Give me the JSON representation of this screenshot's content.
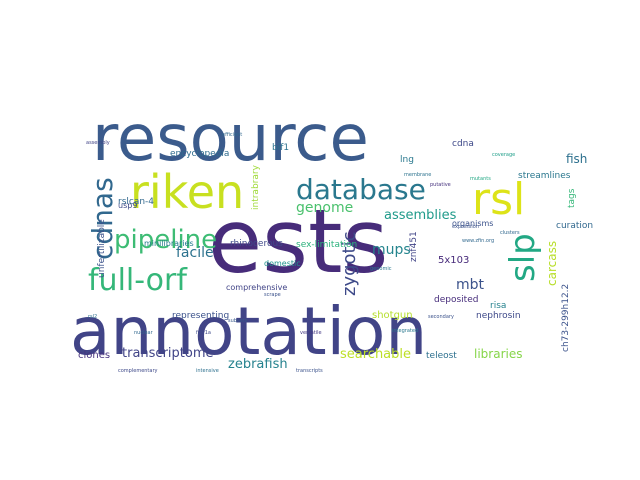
{
  "words": [
    {
      "text": "resource",
      "color": "#3b5b8c"
    },
    {
      "text": "ests",
      "color": "#472c7a"
    },
    {
      "text": "annotation",
      "color": "#414487"
    },
    {
      "text": "riken",
      "color": "#c8e020"
    },
    {
      "text": "database",
      "color": "#2a788e"
    },
    {
      "text": "rsl",
      "color": "#dde318"
    },
    {
      "text": "full-orf",
      "color": "#35b779"
    },
    {
      "text": "pipeline",
      "color": "#3dbc74"
    },
    {
      "text": "cdnas",
      "color": "#31688e"
    },
    {
      "text": "slp",
      "color": "#22a884"
    },
    {
      "text": "zebrafish",
      "color": "#26828e"
    },
    {
      "text": "transcriptome",
      "color": "#414487"
    },
    {
      "text": "searchable",
      "color": "#bddf26"
    },
    {
      "text": "libraries",
      "color": "#86d549"
    },
    {
      "text": "genome",
      "color": "#4ac16d"
    },
    {
      "text": "assemblies",
      "color": "#1f9a8a"
    },
    {
      "text": "facile",
      "color": "#2c728e"
    },
    {
      "text": "zygotic",
      "color": "#3e4a89"
    },
    {
      "text": "mups",
      "color": "#25858e"
    },
    {
      "text": "carcass",
      "color": "#b8de29"
    },
    {
      "text": "fish",
      "color": "#2d708e"
    },
    {
      "text": "mbt",
      "color": "#3b528b"
    },
    {
      "text": "encyclopedia",
      "color": "#2f6c8e"
    },
    {
      "text": "minilibraries",
      "color": "#287c8e"
    },
    {
      "text": "rhinocerous",
      "color": "#3f4889"
    },
    {
      "text": "sex-limitation",
      "color": "#2db27d"
    },
    {
      "text": "domestic",
      "color": "#20928c"
    },
    {
      "text": "comprehensive",
      "color": "#414487"
    },
    {
      "text": "representing",
      "color": "#3b528b"
    },
    {
      "text": "deposited",
      "color": "#472d7b"
    },
    {
      "text": "nephrosin",
      "color": "#3e4989"
    },
    {
      "text": "streamlines",
      "color": "#2a778e"
    },
    {
      "text": "curation",
      "color": "#31688e"
    },
    {
      "text": "organisms",
      "color": "#3b528b"
    },
    {
      "text": "teleost",
      "color": "#2d708e"
    },
    {
      "text": "clones",
      "color": "#46327e"
    },
    {
      "text": "shotgun",
      "color": "#b5de2b"
    },
    {
      "text": "5x103",
      "color": "#472a7a"
    },
    {
      "text": "risa",
      "color": "#26828e"
    },
    {
      "text": "unfertilizable",
      "color": "#3b528b"
    },
    {
      "text": "rslcan-4",
      "color": "#31688e"
    },
    {
      "text": "usp9",
      "color": "#3e4a89"
    },
    {
      "text": "bif1",
      "color": "#2c728e"
    },
    {
      "text": "intrabrary",
      "color": "#a0da39"
    },
    {
      "text": "ch73-299h12.2",
      "color": "#3b528b"
    },
    {
      "text": "znf451",
      "color": "#414487"
    },
    {
      "text": "cdna",
      "color": "#3e4989"
    },
    {
      "text": "tags",
      "color": "#35b779"
    },
    {
      "text": "lng",
      "color": "#2a788e"
    },
    {
      "text": "nuclear",
      "color": "#31688e"
    },
    {
      "text": "fgfr1a",
      "color": "#3e4989"
    },
    {
      "text": "rsl2",
      "color": "#2d708e"
    },
    {
      "text": "subsets",
      "color": "#38598c"
    },
    {
      "text": "versatile",
      "color": "#443983"
    },
    {
      "text": "integrated",
      "color": "#2a788e"
    },
    {
      "text": "secondary",
      "color": "#3b528b"
    },
    {
      "text": "efficient",
      "color": "#31688e"
    },
    {
      "text": "mutants",
      "color": "#22a884"
    },
    {
      "text": "assembly",
      "color": "#414487"
    },
    {
      "text": "membrane",
      "color": "#2c728e"
    },
    {
      "text": "scrape",
      "color": "#3b528b"
    },
    {
      "text": "clusters",
      "color": "#31688e"
    },
    {
      "text": "putative",
      "color": "#46327e"
    },
    {
      "text": "genomic",
      "color": "#2a788e"
    },
    {
      "text": "complementary",
      "color": "#3e4989"
    },
    {
      "text": "transcripts",
      "color": "#3b528b"
    },
    {
      "text": "intensive",
      "color": "#2d708e"
    },
    {
      "text": "coverage",
      "color": "#1f9e89"
    },
    {
      "text": "expression",
      "color": "#3b528b"
    },
    {
      "text": "www.zfin.org",
      "color": "#31688e"
    }
  ]
}
